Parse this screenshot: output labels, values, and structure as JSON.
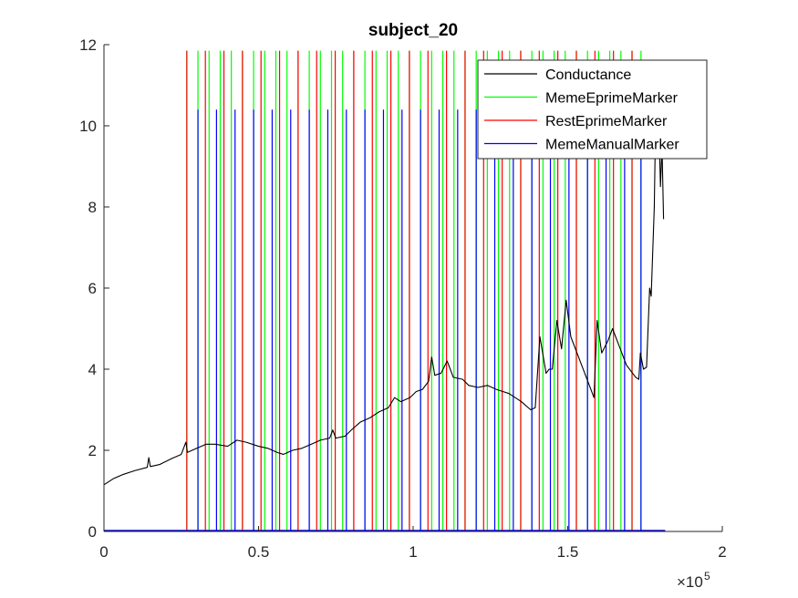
{
  "chart_data": {
    "type": "line",
    "title": "subject_20",
    "xlabel": "",
    "ylabel": "",
    "xlim": [
      0,
      200000
    ],
    "ylim": [
      0,
      12
    ],
    "x_ticks": [
      0,
      50000,
      100000,
      150000,
      200000
    ],
    "x_tick_labels": [
      "0",
      "0.5",
      "1",
      "1.5",
      "2"
    ],
    "x_exponent_base": "×10",
    "x_exponent_power": "5",
    "y_ticks": [
      0,
      2,
      4,
      6,
      8,
      10,
      12
    ],
    "y_tick_labels": [
      "0",
      "2",
      "4",
      "6",
      "8",
      "10",
      "12"
    ],
    "grid": false,
    "legend_position": "top-right",
    "series": [
      {
        "name": "Conductance",
        "color": "#000000",
        "kind": "line",
        "points": [
          [
            0,
            1.15
          ],
          [
            1000,
            1.2
          ],
          [
            3000,
            1.3
          ],
          [
            6000,
            1.4
          ],
          [
            10000,
            1.5
          ],
          [
            14000,
            1.58
          ],
          [
            14500,
            1.82
          ],
          [
            15000,
            1.6
          ],
          [
            18000,
            1.65
          ],
          [
            22000,
            1.8
          ],
          [
            25000,
            1.9
          ],
          [
            26500,
            2.2
          ],
          [
            27000,
            1.95
          ],
          [
            30000,
            2.05
          ],
          [
            33000,
            2.15
          ],
          [
            36000,
            2.15
          ],
          [
            40000,
            2.1
          ],
          [
            43000,
            2.25
          ],
          [
            46000,
            2.2
          ],
          [
            50000,
            2.1
          ],
          [
            53000,
            2.05
          ],
          [
            56000,
            1.95
          ],
          [
            58000,
            1.9
          ],
          [
            61000,
            2.0
          ],
          [
            64000,
            2.05
          ],
          [
            67000,
            2.15
          ],
          [
            70000,
            2.25
          ],
          [
            73000,
            2.3
          ],
          [
            74000,
            2.5
          ],
          [
            75000,
            2.3
          ],
          [
            78000,
            2.35
          ],
          [
            80000,
            2.5
          ],
          [
            83000,
            2.7
          ],
          [
            86000,
            2.8
          ],
          [
            89000,
            2.95
          ],
          [
            92000,
            3.05
          ],
          [
            94000,
            3.3
          ],
          [
            96000,
            3.2
          ],
          [
            99000,
            3.3
          ],
          [
            101000,
            3.45
          ],
          [
            103000,
            3.5
          ],
          [
            105000,
            3.7
          ],
          [
            106000,
            4.3
          ],
          [
            107000,
            3.85
          ],
          [
            109000,
            3.9
          ],
          [
            111000,
            4.2
          ],
          [
            113000,
            3.8
          ],
          [
            116000,
            3.75
          ],
          [
            118000,
            3.6
          ],
          [
            121000,
            3.55
          ],
          [
            124000,
            3.6
          ],
          [
            127000,
            3.5
          ],
          [
            131000,
            3.4
          ],
          [
            135000,
            3.2
          ],
          [
            138000,
            3.0
          ],
          [
            139500,
            3.05
          ],
          [
            141000,
            4.8
          ],
          [
            143000,
            3.9
          ],
          [
            144000,
            4.0
          ],
          [
            145000,
            4.0
          ],
          [
            146500,
            5.2
          ],
          [
            148000,
            4.5
          ],
          [
            149500,
            5.7
          ],
          [
            151000,
            4.8
          ],
          [
            154000,
            4.2
          ],
          [
            157000,
            3.6
          ],
          [
            158500,
            3.3
          ],
          [
            159500,
            5.2
          ],
          [
            161000,
            4.4
          ],
          [
            163000,
            4.7
          ],
          [
            164500,
            5.0
          ],
          [
            166500,
            4.6
          ],
          [
            169000,
            4.1
          ],
          [
            172000,
            3.8
          ],
          [
            173000,
            3.75
          ],
          [
            173500,
            4.4
          ],
          [
            174500,
            4.0
          ],
          [
            175500,
            4.05
          ],
          [
            176500,
            6.0
          ],
          [
            177000,
            5.8
          ],
          [
            178000,
            8.0
          ],
          [
            178500,
            10.5
          ],
          [
            179000,
            9.2
          ],
          [
            179500,
            10.0
          ],
          [
            180000,
            8.5
          ],
          [
            180500,
            9.5
          ],
          [
            181000,
            7.7
          ]
        ]
      },
      {
        "name": "MemeEprimeMarker",
        "color": "#00ff00",
        "kind": "markers",
        "height": 11.85,
        "x": [
          26800,
          30400,
          34000,
          37600,
          41200,
          44800,
          48400,
          52000,
          55600,
          59200,
          62800,
          66400,
          70000,
          73600,
          77200,
          80800,
          84400,
          88000,
          91600,
          95200,
          98800,
          102400,
          106000,
          109600,
          113200,
          116800,
          120400,
          124000,
          127600,
          131200,
          134800,
          138400,
          142000,
          145600,
          149200,
          152800,
          156400,
          160000,
          163600,
          167200,
          170800,
          173700
        ]
      },
      {
        "name": "RestEprimeMarker",
        "color": "#ff0000",
        "kind": "markers",
        "height": 11.85,
        "x": [
          26800,
          32800,
          38800,
          44800,
          50800,
          56800,
          62800,
          68800,
          74800,
          80800,
          86800,
          92800,
          98800,
          104800,
          110800,
          116800,
          122800,
          128800,
          134800,
          140800,
          146800,
          152800,
          158800,
          164800,
          170800
        ]
      },
      {
        "name": "MemeManualMarker",
        "color": "#0000ff",
        "kind": "markers",
        "height": 10.4,
        "x": [
          30400,
          36400,
          42400,
          48400,
          54400,
          60400,
          66400,
          72400,
          78400,
          84400,
          90400,
          96400,
          102400,
          108400,
          114400,
          120400,
          126400,
          132400,
          138400,
          144400,
          150400,
          156400,
          162400,
          168400,
          173700
        ]
      }
    ]
  }
}
